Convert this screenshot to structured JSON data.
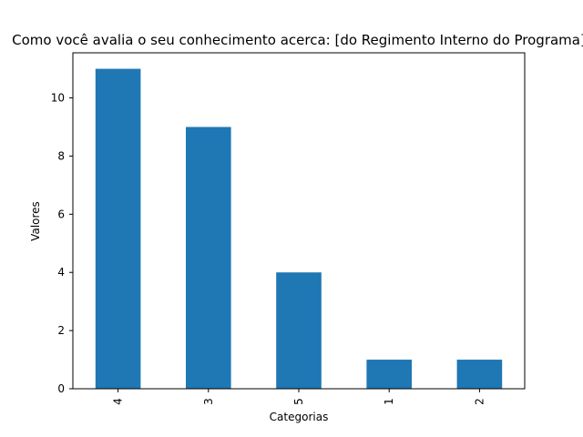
{
  "chart_data": {
    "type": "bar",
    "title": "Como você avalia o seu conhecimento acerca: [do Regimento Interno do Programa]",
    "xlabel": "Categorias",
    "ylabel": "Valores",
    "categories": [
      "4",
      "3",
      "5",
      "1",
      "2"
    ],
    "values": [
      11,
      9,
      4,
      1,
      1
    ],
    "yticks": [
      0,
      2,
      4,
      6,
      8,
      10
    ],
    "ylim": [
      0,
      11.55
    ],
    "grid": false,
    "bar_color": "#1f77b4"
  }
}
